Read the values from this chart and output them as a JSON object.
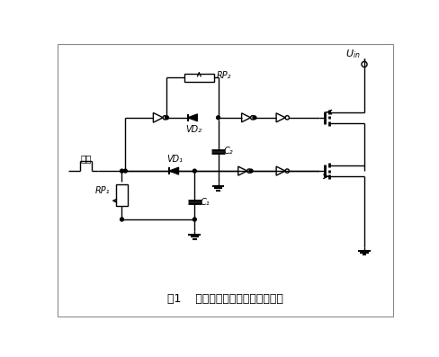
{
  "title": "图1    非隔离的不对称半桥驱动电路",
  "label_maichong": "脉冲",
  "label_uin": "U_in",
  "label_vd1": "VD₁",
  "label_vd2": "VD₂",
  "label_rp1": "RP₁",
  "label_rp2": "RP₂",
  "label_c1": "C₁",
  "label_c2": "C₂",
  "bg_color": "#ffffff",
  "line_color": "#000000",
  "figsize": [
    4.89,
    3.97
  ],
  "dpi": 100
}
